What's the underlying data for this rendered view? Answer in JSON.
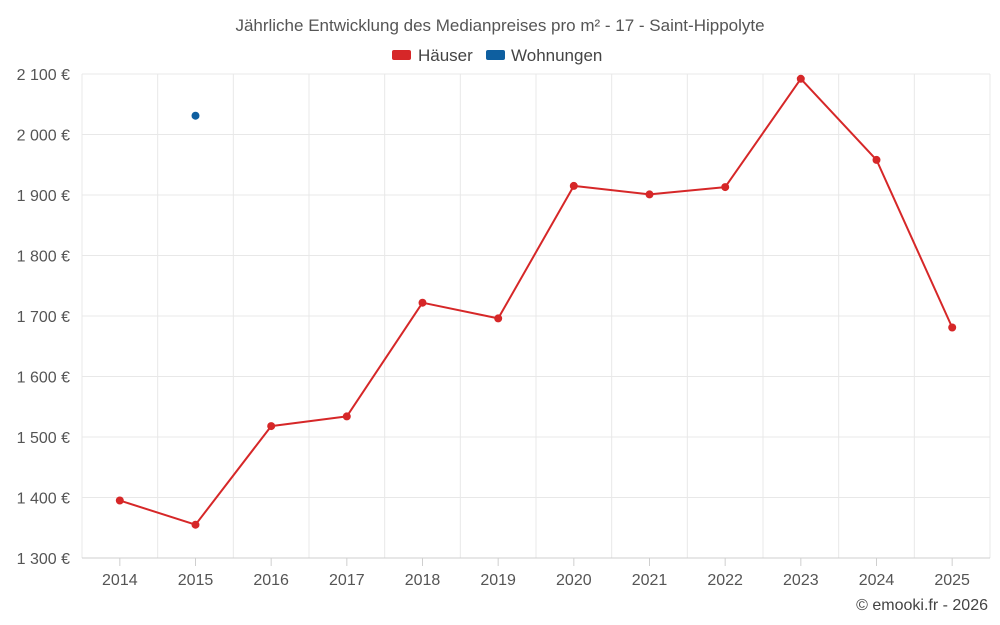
{
  "chart_data": {
    "type": "line",
    "title": "Jährliche Entwicklung des Medianpreises pro m² - 17 - Saint-Hippolyte",
    "categories": [
      "2014",
      "2015",
      "2016",
      "2017",
      "2018",
      "2019",
      "2020",
      "2021",
      "2022",
      "2023",
      "2024",
      "2025"
    ],
    "series": [
      {
        "name": "Häuser",
        "color": "#d62728",
        "values": [
          1395,
          1355,
          1518,
          1534,
          1722,
          1696,
          1915,
          1901,
          1913,
          2092,
          1958,
          1681
        ]
      },
      {
        "name": "Wohnungen",
        "color": "#0e5fa0",
        "values": [
          null,
          2031,
          null,
          null,
          null,
          null,
          null,
          null,
          null,
          null,
          null,
          null
        ]
      }
    ],
    "ylim": [
      1300,
      2100
    ],
    "yticks": [
      2100,
      2000,
      1900,
      1800,
      1700,
      1600,
      1500,
      1400,
      1300
    ],
    "ytick_labels": [
      "2 100 €",
      "2 000 €",
      "1 900 €",
      "1 800 €",
      "1 700 €",
      "1 600 €",
      "1 500 €",
      "1 400 €",
      "1 300 €"
    ],
    "xlabel": "",
    "ylabel": "",
    "grid": true,
    "legend": "top-center"
  },
  "credit": "© emooki.fr - 2026"
}
